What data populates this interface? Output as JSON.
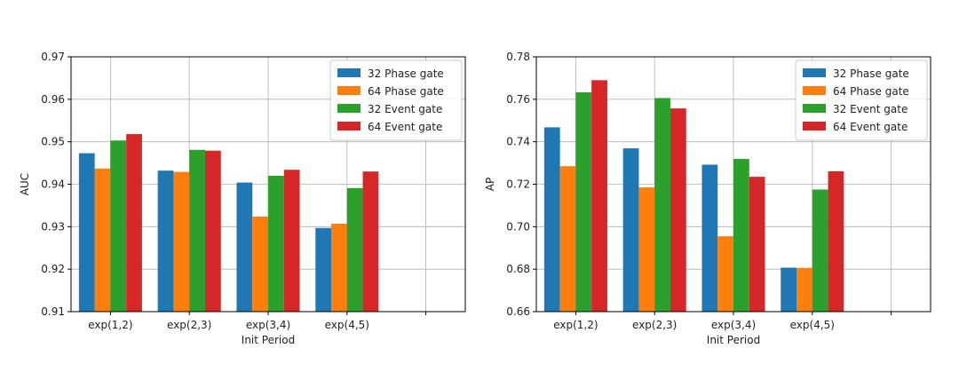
{
  "chart_data": [
    {
      "type": "bar",
      "title": "",
      "xlabel": "Init Period",
      "ylabel": "AUC",
      "categories": [
        "exp(1,2)",
        "exp(2,3)",
        "exp(3,4)",
        "exp(4,5)"
      ],
      "ylim": [
        0.91,
        0.97
      ],
      "yticks": [
        "0.91",
        "0.92",
        "0.93",
        "0.94",
        "0.95",
        "0.96",
        "0.97"
      ],
      "grid": true,
      "legend_position": "top-right",
      "series": [
        {
          "name": "32 Phase gate",
          "color": "#1f77b4",
          "values": [
            0.9473,
            0.9432,
            0.9404,
            0.9297
          ]
        },
        {
          "name": "64 Phase gate",
          "color": "#ff7f0e",
          "values": [
            0.9437,
            0.9429,
            0.9324,
            0.9307
          ]
        },
        {
          "name": "32 Event gate",
          "color": "#2ca02c",
          "values": [
            0.9503,
            0.9481,
            0.942,
            0.9391
          ]
        },
        {
          "name": "64 Event gate",
          "color": "#d62728",
          "values": [
            0.9518,
            0.9479,
            0.9434,
            0.943
          ]
        }
      ]
    },
    {
      "type": "bar",
      "title": "",
      "xlabel": "Init Period",
      "ylabel": "AP",
      "categories": [
        "exp(1,2)",
        "exp(2,3)",
        "exp(3,4)",
        "exp(4,5)"
      ],
      "ylim": [
        0.66,
        0.78
      ],
      "yticks": [
        "0.66",
        "0.68",
        "0.70",
        "0.72",
        "0.74",
        "0.76",
        "0.78"
      ],
      "grid": true,
      "legend_position": "top-right",
      "series": [
        {
          "name": "32 Phase gate",
          "color": "#1f77b4",
          "values": [
            0.7468,
            0.7369,
            0.7292,
            0.6807
          ]
        },
        {
          "name": "64 Phase gate",
          "color": "#ff7f0e",
          "values": [
            0.7285,
            0.7185,
            0.6955,
            0.6806
          ]
        },
        {
          "name": "32 Event gate",
          "color": "#2ca02c",
          "values": [
            0.7633,
            0.7606,
            0.7319,
            0.7175
          ]
        },
        {
          "name": "64 Event gate",
          "color": "#d62728",
          "values": [
            0.769,
            0.7557,
            0.7235,
            0.7261
          ]
        }
      ]
    }
  ]
}
